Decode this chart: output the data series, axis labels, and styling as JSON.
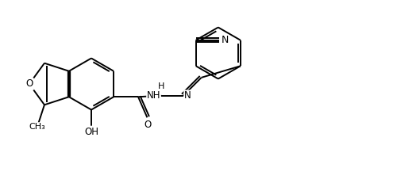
{
  "bg_color": "#ffffff",
  "line_color": "#000000",
  "line_width": 1.4,
  "figsize": [
    5.0,
    2.36
  ],
  "dpi": 100,
  "xlim": [
    0,
    10
  ],
  "ylim": [
    0,
    4.72
  ]
}
